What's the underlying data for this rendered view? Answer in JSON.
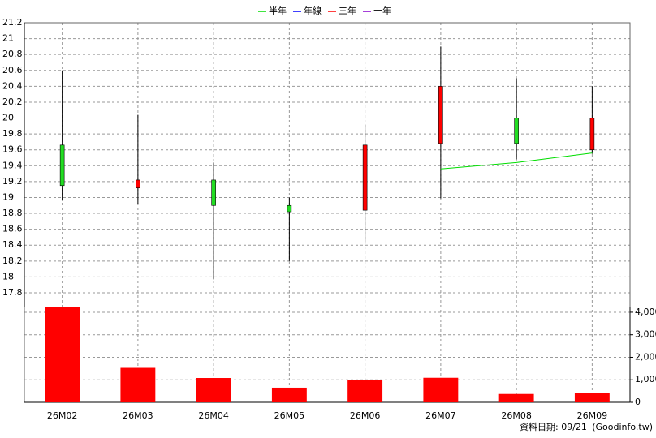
{
  "chart_data": {
    "type": "candlestick",
    "categories": [
      "26M02",
      "26M03",
      "26M04",
      "26M05",
      "26M06",
      "26M07",
      "26M08",
      "26M09"
    ],
    "open": [
      19.66,
      19.12,
      19.22,
      18.9,
      18.84,
      19.68,
      20.0,
      19.6
    ],
    "high": [
      20.6,
      20.04,
      19.44,
      19.0,
      19.92,
      20.9,
      20.5,
      20.4
    ],
    "low": [
      18.96,
      18.92,
      17.97,
      18.2,
      18.44,
      18.99,
      19.48,
      19.55
    ],
    "close": [
      19.15,
      19.22,
      18.9,
      18.82,
      19.66,
      20.4,
      19.68,
      20.0
    ],
    "up_color": "#ff0000",
    "down_color": "#22dd22",
    "ylim": [
      17.8,
      21.2
    ],
    "yticks": [
      17.8,
      18,
      18.2,
      18.4,
      18.6,
      18.8,
      19,
      19.2,
      19.4,
      19.6,
      19.8,
      20,
      20.2,
      20.4,
      20.6,
      20.8,
      21,
      21.2
    ],
    "grid": true,
    "series": [
      {
        "name": "半年",
        "color": "#00dd00",
        "values": [
          null,
          null,
          null,
          null,
          null,
          19.36,
          19.44,
          19.56
        ]
      },
      {
        "name": "年線",
        "color": "#0000ff",
        "values": [
          null,
          null,
          null,
          null,
          null,
          null,
          null,
          null
        ]
      },
      {
        "name": "三年",
        "color": "#ff0000",
        "values": [
          null,
          null,
          null,
          null,
          null,
          null,
          null,
          null
        ]
      },
      {
        "name": "十年",
        "color": "#8800cc",
        "values": [
          null,
          null,
          null,
          null,
          null,
          null,
          null,
          null
        ]
      }
    ],
    "volume": {
      "type": "bar",
      "values": [
        4220,
        1530,
        1080,
        650,
        980,
        1090,
        370,
        410
      ],
      "color": "#ff0000",
      "ylim": [
        0,
        4250
      ],
      "yticks": [
        0,
        {
          "value": 1000,
          "label": "1,000"
        },
        {
          "value": 2000,
          "label": "2,000"
        },
        {
          "value": 3000,
          "label": "3,000"
        },
        {
          "value": 4000,
          "label": "4,000"
        }
      ]
    },
    "footer": {
      "date": "資料日期: 09/21",
      "source": "(Goodinfo.tw)"
    }
  }
}
